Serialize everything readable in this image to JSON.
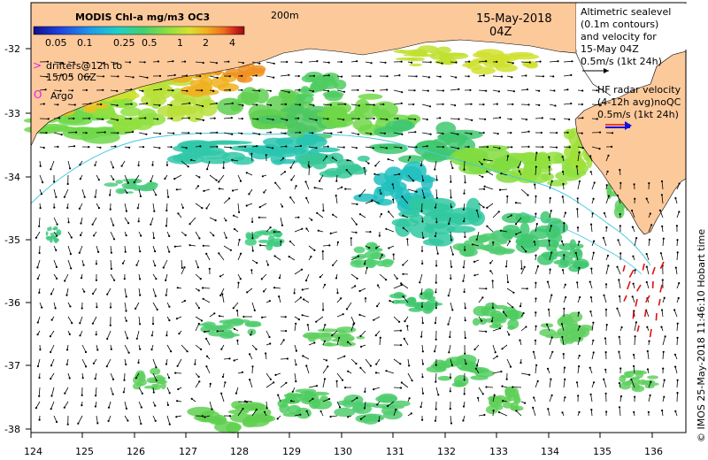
{
  "colorbar": {
    "title": "MODIS Chl-a mg/m3 OC3",
    "ticks": [
      "0.05",
      "0.1",
      "0.25",
      "0.5",
      "1",
      "2",
      "4"
    ],
    "colors": [
      "#10108a",
      "#1f3fe0",
      "#1fa0e8",
      "#1fd0c8",
      "#40d070",
      "#90e040",
      "#d8e030",
      "#f0b020",
      "#f07020",
      "#d02020",
      "#901010"
    ]
  },
  "depth_label": "200m",
  "date": "15-May-2018",
  "time": "04Z",
  "legend": {
    "altimetry_lines": [
      "Altimetric sealevel",
      "(0.1m contours)",
      "and velocity for",
      "15-May 04Z",
      "0.5m/s (1kt 24h)"
    ],
    "hf_lines": [
      "HF radar velocity",
      "(4-12h avg)noQC",
      "0.5m/s (1kt 24h)"
    ],
    "drifter_symbol": ">",
    "drifter_lines": [
      "drifters@12h to",
      "15/05 06Z"
    ],
    "argo_symbol": "O",
    "argo_label": "Argo"
  },
  "lat_labels": [
    "-32",
    "-33",
    "-34",
    "-35",
    "-36",
    "-37",
    "-38"
  ],
  "lon_labels": [
    "124",
    "125",
    "126",
    "127",
    "128",
    "129",
    "130",
    "131",
    "132",
    "133",
    "134",
    "135",
    "136"
  ],
  "credit": "© IMOS 25-May-2018 11:46:10 Hobart time",
  "colors": {
    "land": "#fcc99b",
    "arrow": "#000000",
    "hf_arrow": "#e01010",
    "contour": "#40c8e0",
    "drifter": "#e020e0",
    "blue_arrow": "#1010e0"
  }
}
